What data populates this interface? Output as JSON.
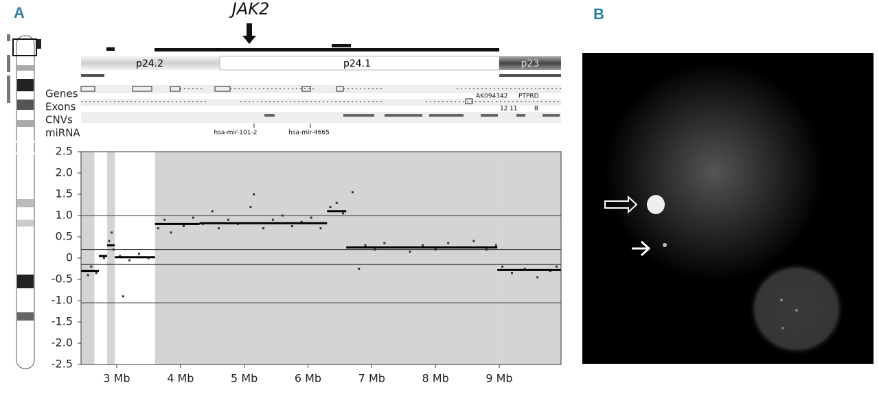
{
  "panel_a": {
    "label": "A",
    "gene": "JAK2",
    "bands": [
      "p24.2",
      "p24.1",
      "p23"
    ],
    "tracks": [
      "Genes",
      "Exons",
      "CNVs",
      "miRNA"
    ],
    "mirna": [
      "hsa-mir-101-2",
      "hsa-mir-4665"
    ],
    "gene_labels": [
      "AK094342",
      "PTPRD"
    ],
    "exon_numbers": [
      "12",
      "11",
      "8"
    ]
  },
  "chart_data": {
    "type": "scatter",
    "color": "#333333",
    "x": [
      2.5,
      2.55,
      2.6,
      2.68,
      2.75,
      2.8,
      2.88,
      2.92,
      2.95,
      3.05,
      3.2,
      3.35,
      3.5,
      3.1,
      3.65,
      3.75,
      3.85,
      3.95,
      4.05,
      4.2,
      4.35,
      4.5,
      4.6,
      4.75,
      4.9,
      5.1,
      5.15,
      5.3,
      5.45,
      5.6,
      5.75,
      5.9,
      6.05,
      6.2,
      6.35,
      6.45,
      6.55,
      6.7,
      6.8,
      6.9,
      7.05,
      7.2,
      7.4,
      7.6,
      7.8,
      8.0,
      8.2,
      8.4,
      8.6,
      8.8,
      8.95,
      9.05,
      9.2,
      9.4,
      9.6,
      9.8,
      9.9
    ],
    "values": [
      -0.3,
      -0.4,
      -0.2,
      -0.35,
      0.05,
      0.0,
      0.4,
      0.6,
      0.2,
      0.05,
      -0.05,
      0.1,
      0.0,
      -0.9,
      0.7,
      0.9,
      0.6,
      0.8,
      0.75,
      0.95,
      0.8,
      1.1,
      0.7,
      0.9,
      0.8,
      1.2,
      1.5,
      0.7,
      0.9,
      1.0,
      0.75,
      0.85,
      0.95,
      0.7,
      1.2,
      1.3,
      1.05,
      1.55,
      -0.25,
      0.3,
      0.2,
      0.35,
      0.25,
      0.15,
      0.3,
      0.2,
      0.35,
      0.25,
      0.4,
      0.2,
      0.3,
      -0.2,
      -0.35,
      -0.25,
      -0.45,
      -0.3,
      -0.2
    ],
    "segments": {
      "starts": [
        2.44,
        2.72,
        2.85,
        2.97,
        3.6,
        4.3,
        6.3,
        6.6,
        8.97
      ],
      "ends": [
        2.72,
        2.85,
        2.97,
        3.6,
        4.3,
        6.3,
        6.6,
        8.97,
        9.97
      ],
      "values": [
        -0.3,
        0.05,
        0.3,
        0.02,
        0.8,
        0.82,
        1.1,
        0.25,
        -0.28
      ]
    },
    "shaded_regions": {
      "starts": [
        2.44,
        2.85,
        3.6,
        8.97
      ],
      "ends": [
        2.65,
        2.97,
        8.97,
        9.97
      ]
    },
    "threshold_lines": [
      1.0,
      0.2,
      -0.15,
      -1.05
    ],
    "xlim": [
      2.44,
      9.97
    ],
    "ylim": [
      -2.5,
      2.5
    ],
    "xticks": [
      {
        "value": 3,
        "label": "3 Mb"
      },
      {
        "value": 4,
        "label": "4 Mb"
      },
      {
        "value": 5,
        "label": "5 Mb"
      },
      {
        "value": 6,
        "label": "6 Mb"
      },
      {
        "value": 7,
        "label": "7 Mb"
      },
      {
        "value": 8,
        "label": "8 Mb"
      },
      {
        "value": 9,
        "label": "9 Mb"
      }
    ],
    "yticks": [
      2.5,
      {
        "value": 2,
        "label": "2.0"
      },
      1.5,
      {
        "value": 1,
        "label": "1.0"
      },
      0.5,
      0,
      -0.5,
      {
        "value": -1,
        "label": "-1.0"
      },
      -1.5,
      {
        "value": -2,
        "label": "-2.0"
      },
      -2.5
    ]
  },
  "panel_b": {
    "label": "B"
  }
}
